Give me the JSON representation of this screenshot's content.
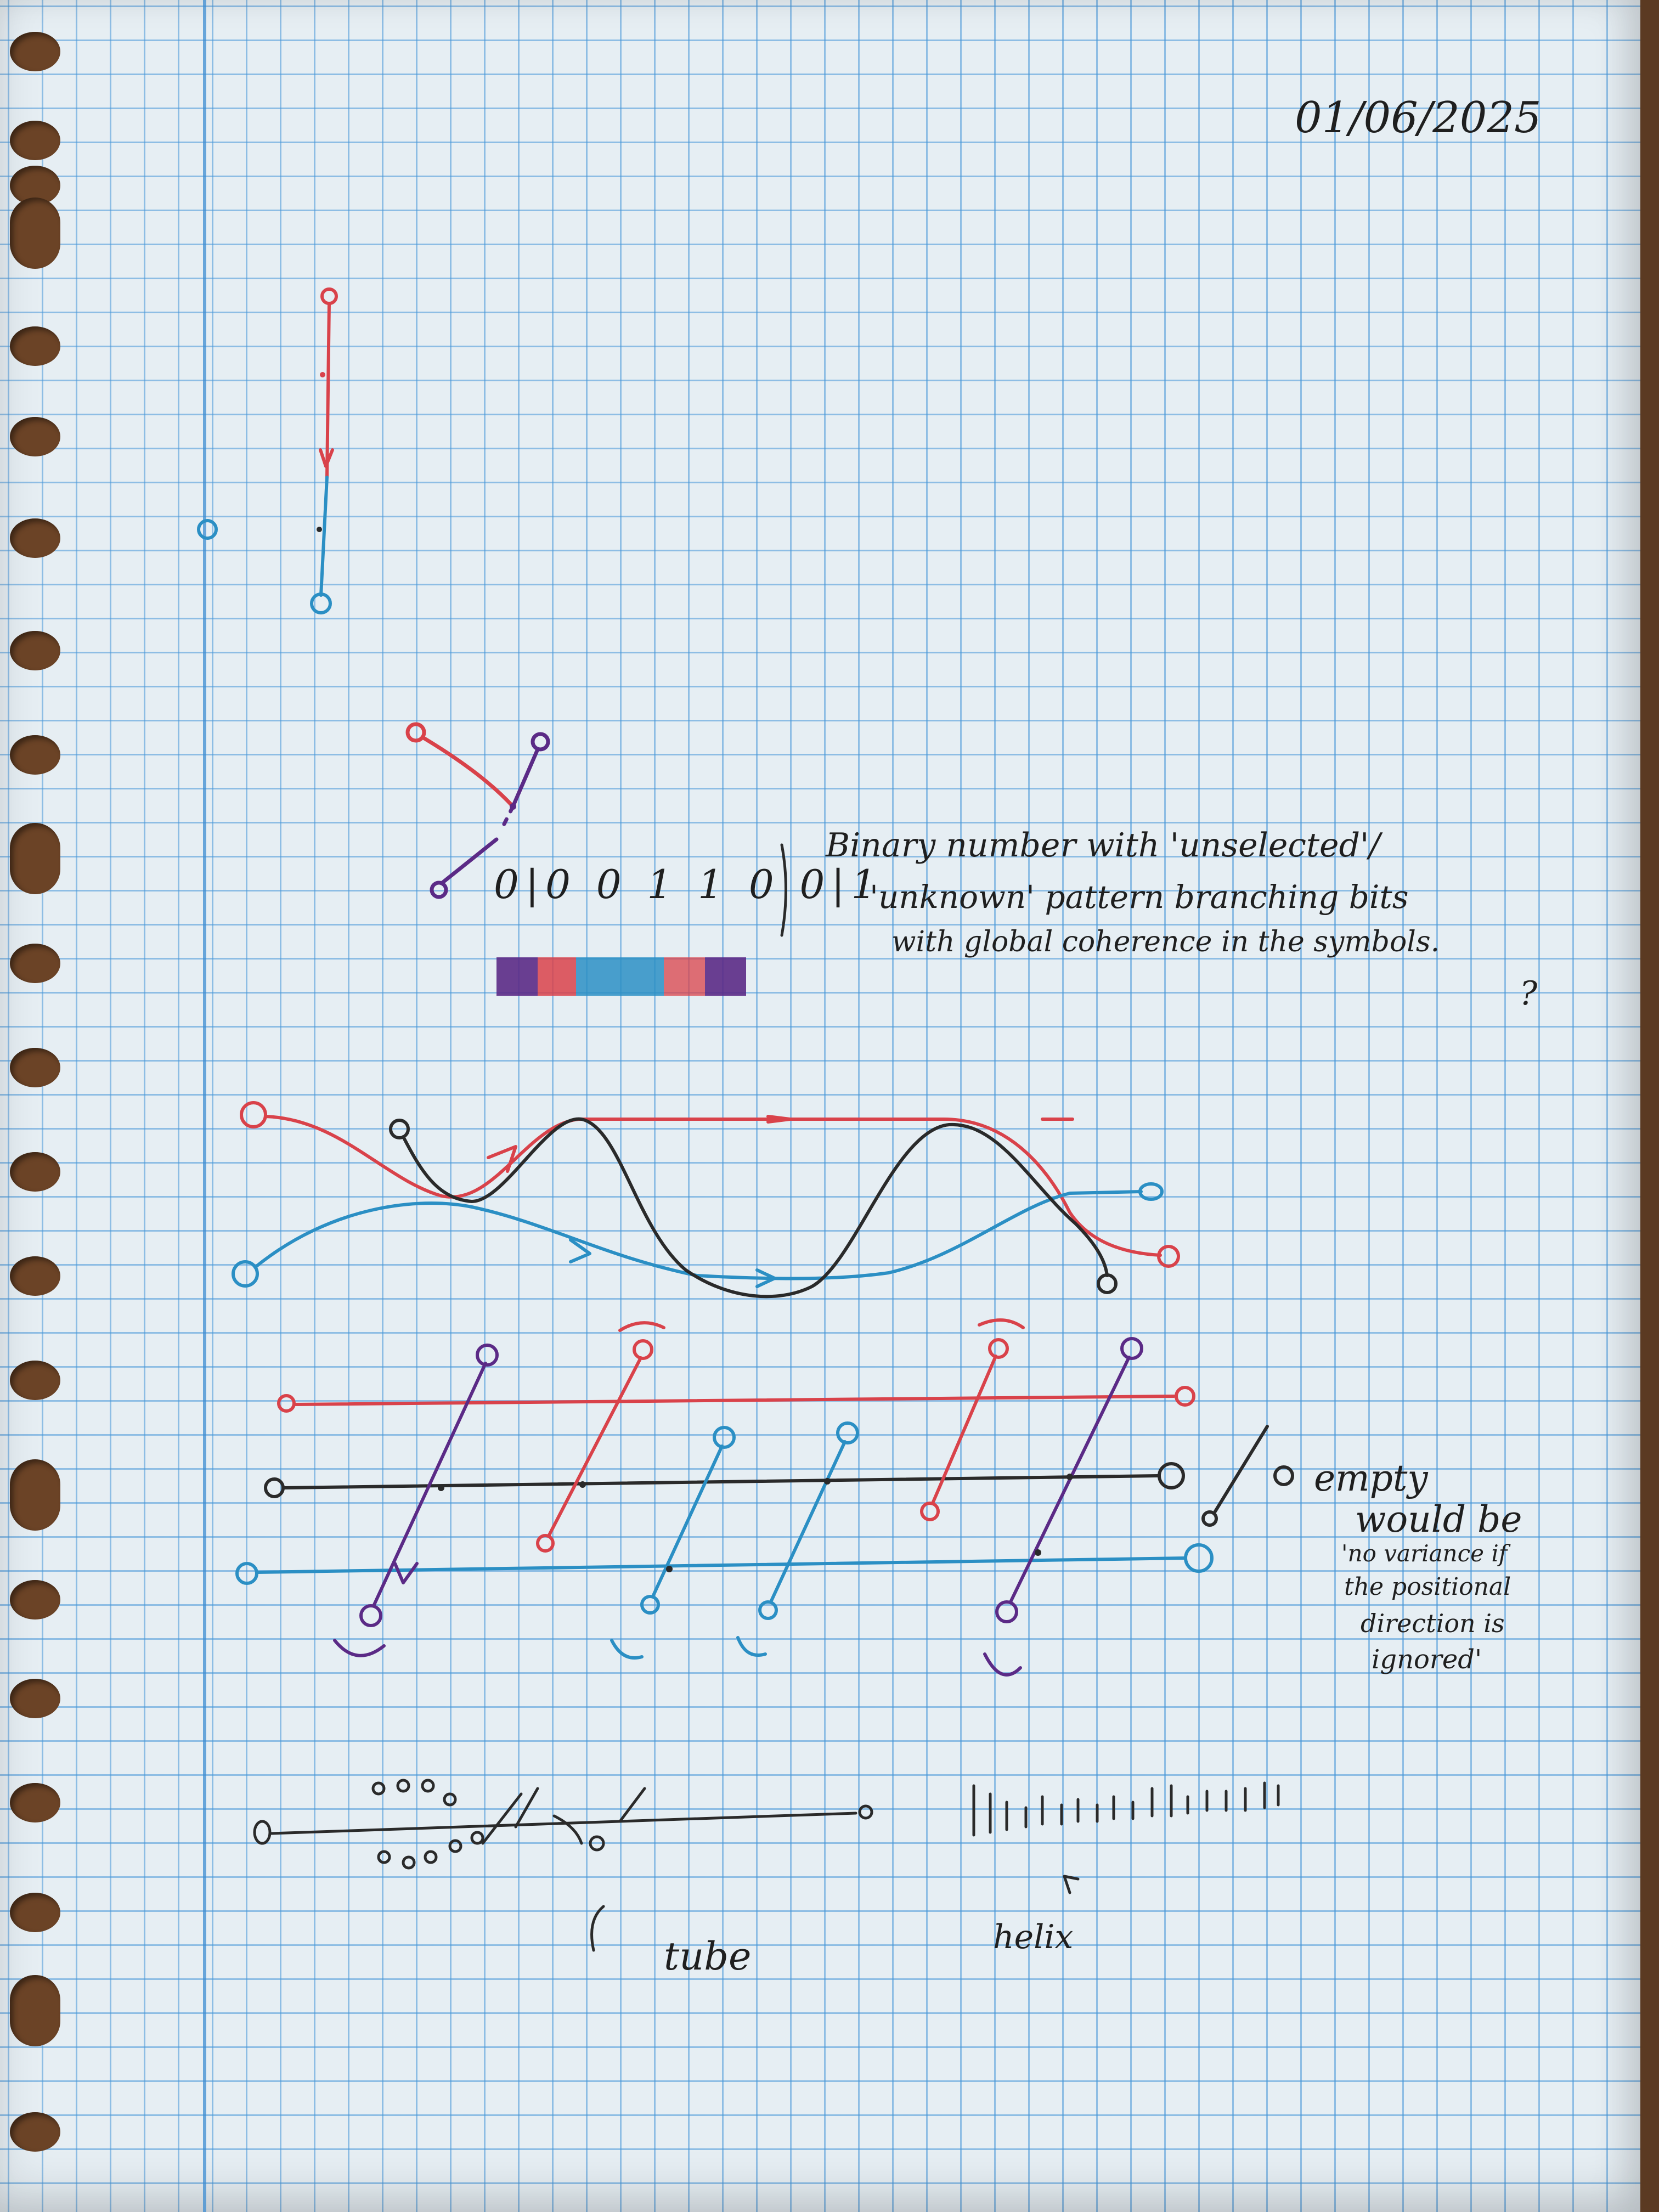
{
  "page": {
    "date": "01/06/2025",
    "bit_string": "0|0 0 1 1 0 0|1",
    "note_binary": [
      "Binary number with 'unselected'/",
      "'unknown' pattern branching bits",
      "with global coherence in the symbols."
    ],
    "note_binary_mark": "?",
    "note_empty": "empty",
    "note_variance": [
      "would be",
      "'no variance if",
      "the positional",
      "direction is",
      "ignored'"
    ],
    "label_tube": "tube",
    "label_helix": "helix"
  },
  "colors": {
    "paper": "#e6eef3",
    "grid": "#4696d7",
    "red_pen": "#d9424a",
    "blue_pen": "#2b8fc4",
    "black_pen": "#2a2a2a",
    "purple_pen": "#5b2a86"
  }
}
